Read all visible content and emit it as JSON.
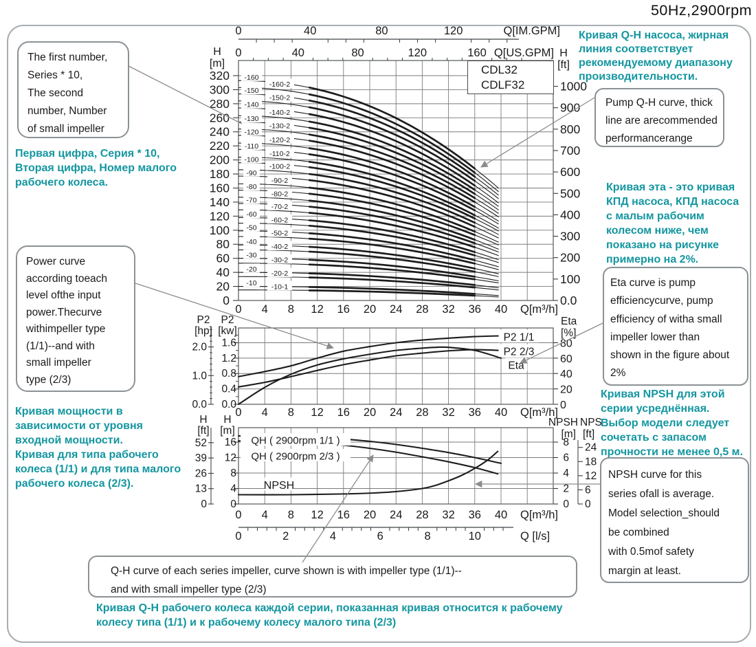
{
  "title": "50Hz,2900rpm",
  "legend": {
    "models": [
      "CDL32",
      "CDLF32"
    ]
  },
  "colors": {
    "accent_teal": "#1496a0",
    "curve": "#1c1c1c",
    "grid": "#7a7a7a",
    "frame": "#5f6467",
    "leader": "#8c8c8c",
    "tick": "#3a3a3a",
    "text": "#1a1a1a"
  },
  "callouts": {
    "series_en": {
      "lines": [
        "The first number,",
        "Series * 10,",
        "The second",
        "number, Number",
        "of small impeller"
      ]
    },
    "series_ru": {
      "lines": [
        "Первая цифра, Серия * 10,",
        "Вторая цифра, Номер малого",
        "рабочего колеса."
      ]
    },
    "qh_ru": {
      "lines": [
        "Кривая Q-H насоса, жирная",
        "линия соответствует",
        "рекомендуемому диапазону",
        "производительности."
      ]
    },
    "qh_en": {
      "lines": [
        "Pump Q-H curve, thick",
        "line are arecommended",
        "performancerange"
      ]
    },
    "eta_ru": {
      "lines": [
        "Кривая эта - это кривая",
        "КПД насоса, КПД насоса",
        "с малым рабочим",
        "колесом ниже, чем",
        "показано на рисунке",
        "примерно на 2%."
      ]
    },
    "eta_en": {
      "lines": [
        "Eta curve is pump",
        "efficiencycurve, pump",
        " efficiency of witha small",
        "impeller lower than",
        "shown in the figure about",
        "2%"
      ]
    },
    "npsh_ru": {
      "lines": [
        "Кривая NPSH для этой",
        "серии усреднённая.",
        "Выбор модели следует",
        "сочетать с запасом",
        "прочности не менее 0,5 м."
      ]
    },
    "npsh_en": {
      "lines": [
        "NPSH curve for this",
        "series ofall is average.",
        "Model selection_should",
        "be combined",
        " with 0.5mof safety",
        "margin at least."
      ]
    },
    "power_en": {
      "lines": [
        "Power curve",
        "according toeach",
        "level ofthe input",
        "power.Thecurve",
        " withimpeller type",
        "(1/1)--and with",
        "small impeller",
        "type (2/3)"
      ]
    },
    "power_ru": {
      "lines": [
        "Кривая мощности в",
        "зависимости от уровня",
        "входной мощности.",
        "Кривая для типа рабочего",
        "колеса (1/1) и для типа малого",
        "рабочего колеса (2/3)."
      ]
    },
    "impeller_en": {
      "lines": [
        "Q-H curve of each series impeller, curve shown is with impeller type (1/1)--",
        "and with small impeller type (2/3)"
      ]
    },
    "impeller_ru": {
      "lines": [
        "Кривая Q-H рабочего колеса каждой серии, показанная кривая относится к рабочему",
        "колесу типа (1/1) и к рабочему колесу малого типа (2/3)"
      ]
    }
  },
  "axes": {
    "x_m3h": {
      "title": "Q[m³/h]",
      "ticks": [
        0,
        4,
        8,
        12,
        16,
        20,
        24,
        28,
        32,
        36,
        40
      ]
    },
    "imgpm": {
      "title": "Q[IM.GPM]",
      "ticks": [
        0,
        40,
        80,
        120
      ]
    },
    "usgpm": {
      "title": "Q[US.GPM]",
      "ticks": [
        0,
        40,
        80,
        120,
        160
      ]
    },
    "ls": {
      "title": "Q [l/s]",
      "ticks": [
        0,
        2,
        4,
        6,
        8,
        10
      ]
    },
    "main": {
      "h_m": {
        "header": [
          "H",
          "[m]"
        ],
        "ticks": [
          0,
          20,
          40,
          60,
          80,
          100,
          120,
          140,
          160,
          180,
          200,
          220,
          240,
          260,
          280,
          300,
          320
        ]
      },
      "h_ft": {
        "header": [
          "H",
          "[ft]"
        ],
        "ticks": [
          "1000",
          "900",
          "800",
          "700",
          "600",
          "500",
          "400",
          "300",
          "200",
          "100",
          "0.0"
        ]
      }
    },
    "mid": {
      "hp": {
        "header": [
          "P2",
          "[hp]"
        ],
        "ticks": [
          "2.0",
          "1.0",
          "0.0"
        ]
      },
      "kw": {
        "header": [
          "P2",
          "[kw]"
        ],
        "ticks": [
          "1.6",
          "1.2",
          "0.8",
          "0.4",
          "0.0"
        ]
      },
      "eta": {
        "header": [
          "Eta",
          "[%]"
        ],
        "ticks": [
          "80",
          "60",
          "40",
          "20",
          "0"
        ]
      }
    },
    "bot": {
      "h_ft": {
        "header": [
          "H",
          "[ft]"
        ],
        "ticks": [
          "52",
          "39",
          "26",
          "13",
          "0"
        ]
      },
      "h_m": {
        "header": [
          "H",
          "[m]"
        ],
        "ticks": [
          "16",
          "12",
          "8",
          "4",
          "0"
        ]
      },
      "npsh_m": {
        "header": [
          "NPSH",
          "[m]"
        ],
        "ticks": [
          "8",
          "6",
          "4",
          "2",
          "0"
        ]
      },
      "nps_ft": {
        "header": [
          "NPS",
          "[ft]"
        ],
        "ticks": [
          "24",
          "18",
          "12",
          "6",
          "0"
        ]
      }
    }
  },
  "chart_data": {
    "type": "line",
    "charts": [
      {
        "id": "qh_family",
        "title": "Pump Q-H curves, thick segment = recommended range",
        "x_unit": "m³/h",
        "x_range": [
          0,
          40
        ],
        "y_unit": "m",
        "ylim": [
          0,
          341
        ],
        "curves": [
          {
            "label": "-160",
            "h0_m": 313,
            "h_end_m": 160
          },
          {
            "label": "-160-2",
            "h0_m": 303,
            "h_end_m": 155
          },
          {
            "label": "-150",
            "h0_m": 294,
            "h_end_m": 150
          },
          {
            "label": "-150-2",
            "h0_m": 284,
            "h_end_m": 145
          },
          {
            "label": "-140",
            "h0_m": 274,
            "h_end_m": 139
          },
          {
            "label": "-140-2",
            "h0_m": 263,
            "h_end_m": 134
          },
          {
            "label": "-130",
            "h0_m": 254,
            "h_end_m": 129
          },
          {
            "label": "-130-2",
            "h0_m": 244,
            "h_end_m": 124
          },
          {
            "label": "-120",
            "h0_m": 235,
            "h_end_m": 119
          },
          {
            "label": "-120-2",
            "h0_m": 224,
            "h_end_m": 113
          },
          {
            "label": "-110",
            "h0_m": 215,
            "h_end_m": 109
          },
          {
            "label": "-110-2",
            "h0_m": 204,
            "h_end_m": 103
          },
          {
            "label": "-100",
            "h0_m": 196,
            "h_end_m": 99
          },
          {
            "label": "-100-2",
            "h0_m": 186,
            "h_end_m": 94
          },
          {
            "label": "-90",
            "h0_m": 177,
            "h_end_m": 89
          },
          {
            "label": "-90-2",
            "h0_m": 166,
            "h_end_m": 83
          },
          {
            "label": "-80",
            "h0_m": 157,
            "h_end_m": 79
          },
          {
            "label": "-80-2",
            "h0_m": 147,
            "h_end_m": 73
          },
          {
            "label": "-70",
            "h0_m": 138,
            "h_end_m": 69
          },
          {
            "label": "-70-2",
            "h0_m": 129,
            "h_end_m": 64
          },
          {
            "label": "-60",
            "h0_m": 118,
            "h_end_m": 58
          },
          {
            "label": "-60-2",
            "h0_m": 110,
            "h_end_m": 54
          },
          {
            "label": "-50",
            "h0_m": 99,
            "h_end_m": 48
          },
          {
            "label": "-50-2",
            "h0_m": 91,
            "h_end_m": 44
          },
          {
            "label": "-40",
            "h0_m": 79,
            "h_end_m": 38
          },
          {
            "label": "-40-2",
            "h0_m": 72,
            "h_end_m": 34
          },
          {
            "label": "-30",
            "h0_m": 60,
            "h_end_m": 28
          },
          {
            "label": "-30-2",
            "h0_m": 53,
            "h_end_m": 25
          },
          {
            "label": "-20",
            "h0_m": 40,
            "h_end_m": 18
          },
          {
            "label": "-20-2",
            "h0_m": 34,
            "h_end_m": 15
          },
          {
            "label": "-10",
            "h0_m": 20,
            "h_end_m": 7
          },
          {
            "label": "-10-1",
            "h0_m": 15,
            "h_end_m": 5
          }
        ]
      },
      {
        "id": "power_efficiency",
        "x_unit": "m³/h",
        "series": [
          {
            "name": "P2 1/1",
            "unit": "kW",
            "points": [
              [
                0,
                0.72
              ],
              [
                4,
                0.85
              ],
              [
                8,
                1.0
              ],
              [
                12,
                1.2
              ],
              [
                16,
                1.38
              ],
              [
                20,
                1.5
              ],
              [
                24,
                1.6
              ],
              [
                28,
                1.67
              ],
              [
                32,
                1.72
              ],
              [
                36,
                1.76
              ],
              [
                40,
                1.78
              ]
            ]
          },
          {
            "name": "P2 2/3",
            "unit": "kW",
            "points": [
              [
                0,
                0.45
              ],
              [
                4,
                0.57
              ],
              [
                8,
                0.72
              ],
              [
                12,
                0.88
              ],
              [
                16,
                1.03
              ],
              [
                20,
                1.15
              ],
              [
                24,
                1.26
              ],
              [
                28,
                1.33
              ],
              [
                32,
                1.39
              ],
              [
                36,
                1.42
              ],
              [
                40,
                1.4
              ]
            ]
          },
          {
            "name": "Eta",
            "unit": "%",
            "points": [
              [
                0,
                0
              ],
              [
                4,
                22
              ],
              [
                8,
                39
              ],
              [
                12,
                51
              ],
              [
                16,
                59
              ],
              [
                20,
                65
              ],
              [
                24,
                70
              ],
              [
                28,
                73
              ],
              [
                30,
                74
              ],
              [
                32,
                74
              ],
              [
                36,
                70
              ],
              [
                40,
                60
              ]
            ]
          }
        ]
      },
      {
        "id": "qh_npsh",
        "x_unit": "m³/h",
        "series": [
          {
            "name": "QH ( 2900rpm 1/1 )",
            "unit": "m",
            "points": [
              [
                0,
                17.6
              ],
              [
                4,
                17.6
              ],
              [
                8,
                17.5
              ],
              [
                12,
                17.3
              ],
              [
                16,
                16.8
              ],
              [
                20,
                16.2
              ],
              [
                24,
                15.4
              ],
              [
                28,
                14.4
              ],
              [
                32,
                13.3
              ],
              [
                36,
                12.0
              ],
              [
                40,
                10.5
              ]
            ]
          },
          {
            "name": "QH ( 2900rpm 2/3 )",
            "unit": "m",
            "points": [
              [
                0,
                16.3
              ],
              [
                4,
                16.3
              ],
              [
                8,
                16.1
              ],
              [
                12,
                15.8
              ],
              [
                16,
                15.2
              ],
              [
                20,
                14.4
              ],
              [
                24,
                13.4
              ],
              [
                28,
                12.2
              ],
              [
                32,
                10.9
              ],
              [
                36,
                9.4
              ],
              [
                39.5,
                7.8
              ]
            ]
          },
          {
            "name": "NPSH",
            "unit": "m",
            "points": [
              [
                0,
                1.2
              ],
              [
                8,
                1.2
              ],
              [
                16,
                1.3
              ],
              [
                20,
                1.4
              ],
              [
                24,
                1.6
              ],
              [
                28,
                2.0
              ],
              [
                30,
                2.4
              ],
              [
                32,
                3.0
              ],
              [
                34,
                3.7
              ],
              [
                36,
                4.6
              ],
              [
                38,
                5.7
              ],
              [
                39.5,
                6.8
              ]
            ]
          }
        ]
      }
    ]
  }
}
